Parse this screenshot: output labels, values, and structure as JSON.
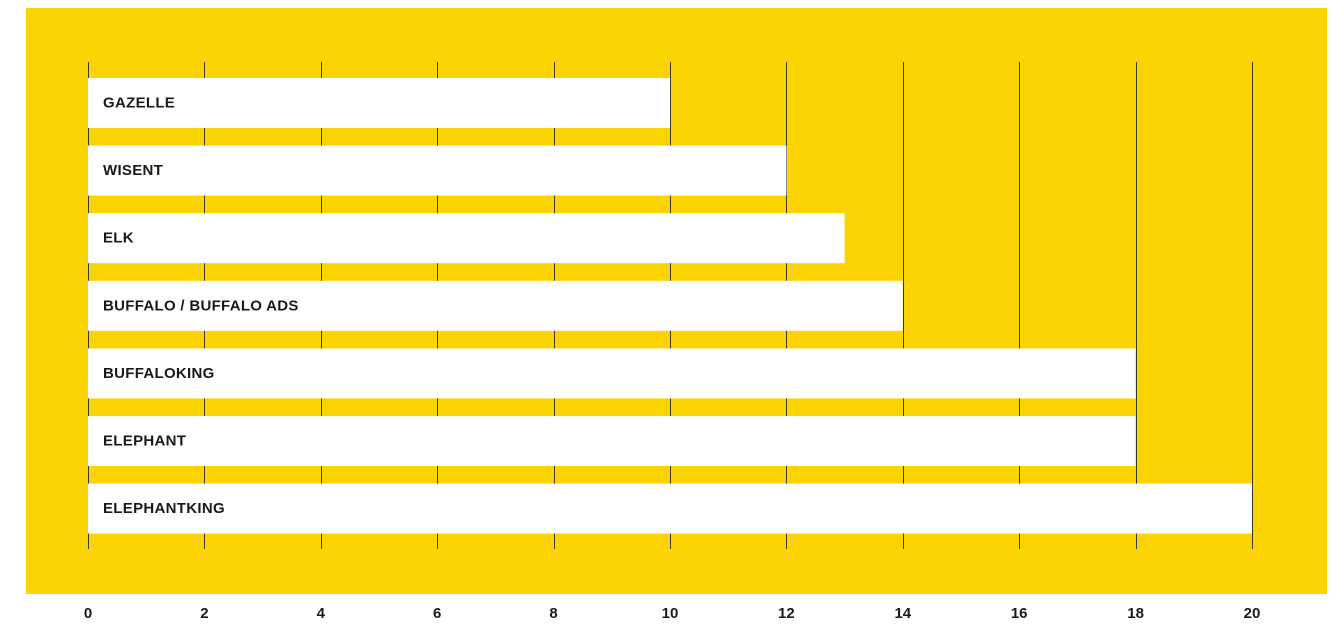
{
  "colors": {
    "background": "#FDD403",
    "bar": "#FFFFFF",
    "gridline": "#3a3a2a",
    "text": "#1a1a1a"
  },
  "chart_data": {
    "type": "bar",
    "orientation": "horizontal",
    "categories": [
      "GAZELLE",
      "WISENT",
      "ELK",
      "BUFFALO / BUFFALO ADS",
      "BUFFALOKING",
      "ELEPHANT",
      "ELEPHANTKING"
    ],
    "values": [
      10,
      12,
      13,
      14,
      18,
      18,
      20
    ],
    "title": "",
    "xlabel": "",
    "ylabel": "",
    "xlim": [
      0,
      20
    ],
    "xticks": [
      0,
      2,
      4,
      6,
      8,
      10,
      12,
      14,
      16,
      18,
      20
    ],
    "tick_labels": [
      "0",
      "2",
      "4",
      "6",
      "8",
      "10",
      "12",
      "14",
      "16",
      "18",
      "20"
    ],
    "grid": true,
    "legend": "none"
  }
}
